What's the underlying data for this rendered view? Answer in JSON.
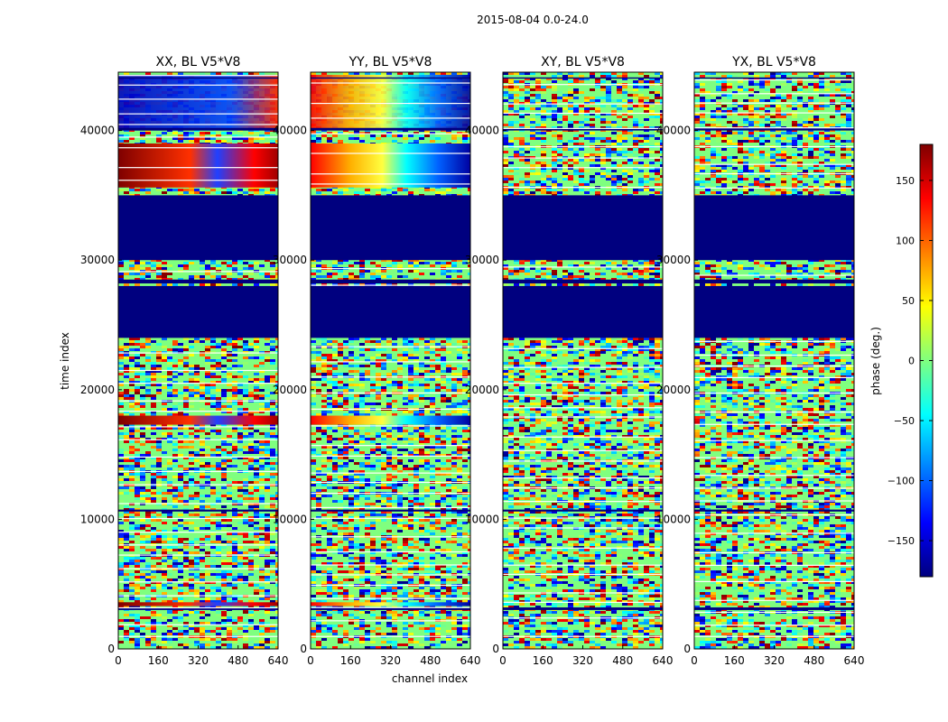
{
  "chart_data": {
    "type": "heatmap",
    "suptitle": "2015-08-04 0.0-24.0",
    "xlabel": "channel index",
    "ylabel": "time index",
    "xlim": [
      0,
      640
    ],
    "ylim": [
      0,
      44500
    ],
    "xticks": [
      "0",
      "160",
      "320",
      "480",
      "640"
    ],
    "xtick_values": [
      0,
      160,
      320,
      480,
      640
    ],
    "yticks": [
      "0",
      "10000",
      "20000",
      "30000",
      "40000"
    ],
    "ytick_values": [
      0,
      10000,
      20000,
      30000,
      40000
    ],
    "panels": [
      {
        "title": "XX, BL V5*V8",
        "pol": "XX",
        "phase_pattern": "strong-slope"
      },
      {
        "title": "YY, BL V5*V8",
        "pol": "YY",
        "phase_pattern": "strong-slope"
      },
      {
        "title": "XY, BL V5*V8",
        "pol": "XY",
        "phase_pattern": "noise"
      },
      {
        "title": "YX, BL V5*V8",
        "pol": "YX",
        "phase_pattern": "noise"
      }
    ],
    "flagged_time_ranges": [
      [
        24000,
        28000
      ],
      [
        28200,
        28500
      ],
      [
        30000,
        35000
      ]
    ],
    "colorbar": {
      "label": "phase (deg.)",
      "range": [
        -180,
        180
      ],
      "ticks": [
        "150",
        "100",
        "50",
        "0",
        "−50",
        "−100",
        "−150"
      ],
      "tick_values": [
        150,
        100,
        50,
        0,
        -50,
        -100,
        -150
      ],
      "colormap": "jet",
      "colors": [
        "#00007F",
        "#0000FF",
        "#007FFF",
        "#00FFFF",
        "#7FFF7F",
        "#FFFF00",
        "#FF7F00",
        "#FF0000",
        "#7F0000"
      ]
    }
  }
}
